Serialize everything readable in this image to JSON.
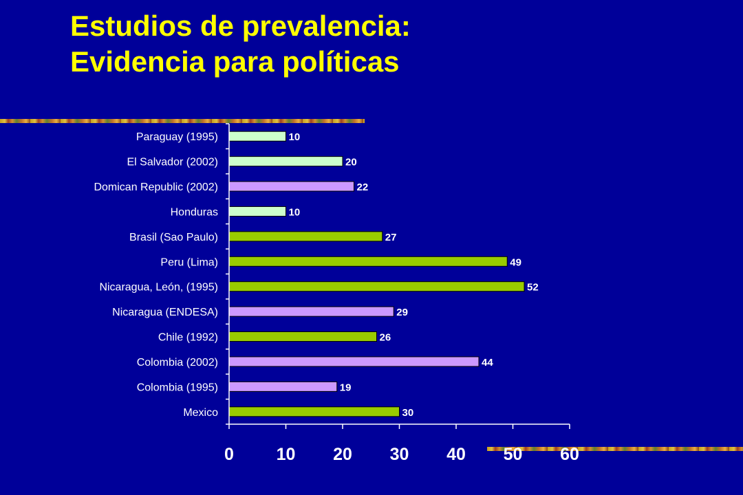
{
  "title": {
    "line1": "Estudios de prevalencia:",
    "line2": "Evidencia para políticas"
  },
  "colors": {
    "background": "#000099",
    "title": "#ffff00",
    "bar_mint": "#ccffcc",
    "bar_lavender": "#cc99ff",
    "bar_green": "#99cc00"
  },
  "chart_data": {
    "type": "bar",
    "orientation": "horizontal",
    "categories": [
      "Paraguay (1995)",
      "El Salvador (2002)",
      "Domican Republic (2002)",
      "Honduras",
      "Brasil (Sao Paulo)",
      "Peru (Lima)",
      "Nicaragua, León, (1995)",
      "Nicaragua (ENDESA)",
      "Chile (1992)",
      "Colombia (2002)",
      "Colombia (1995)",
      "Mexico"
    ],
    "values": [
      10,
      20,
      22,
      10,
      27,
      49,
      52,
      29,
      26,
      44,
      19,
      30
    ],
    "bar_colors": [
      "#ccffcc",
      "#ccffcc",
      "#cc99ff",
      "#ccffcc",
      "#99cc00",
      "#99cc00",
      "#99cc00",
      "#cc99ff",
      "#99cc00",
      "#cc99ff",
      "#cc99ff",
      "#99cc00"
    ],
    "xlim": [
      0,
      60
    ],
    "xticks": [
      0,
      10,
      20,
      30,
      40,
      50,
      60
    ],
    "xtick_labels": [
      "0",
      "10",
      "20",
      "30",
      "40",
      "50",
      "60"
    ],
    "data_labels": true,
    "grid": false,
    "legend": "none"
  }
}
